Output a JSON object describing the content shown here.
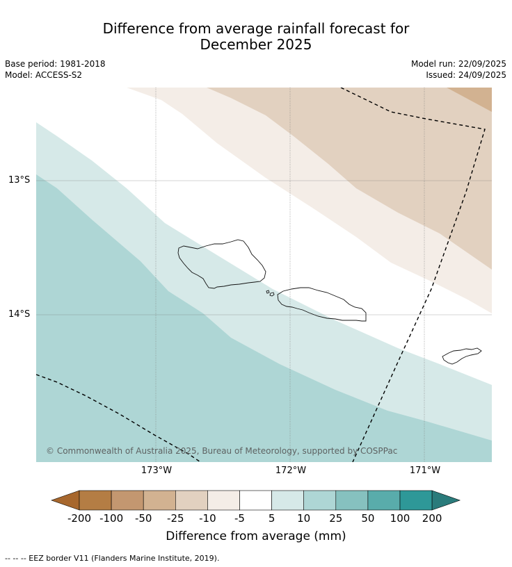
{
  "header": {
    "title_line1": "Difference from average rainfall forecast for",
    "title_line2": "December 2025",
    "base_period": "Base period: 1981-2018",
    "model": "Model: ACCESS-S2",
    "model_run": "Model run: 22/09/2025",
    "issued": "Issued: 24/09/2025"
  },
  "map": {
    "lat_labels": [
      "13°S",
      "14°S"
    ],
    "lon_labels": [
      "173°W",
      "172°W",
      "171°W"
    ],
    "copyright": "© Commonwealth of Australia 2025, Bureau of Meteorology, supported by COSPPac",
    "colors": {
      "b_minus10_minus5": "#f4ede7",
      "b_minus25_minus10": "#e2d1c0",
      "b_minus50_minus25": "#d2b291",
      "b_minus5_5": "#ffffff",
      "b_5_10": "#d6e9e8",
      "b_10_25": "#aed6d5"
    }
  },
  "legend": {
    "ticks": [
      "-200",
      "-100",
      "-50",
      "-25",
      "-10",
      "-5",
      "5",
      "10",
      "25",
      "50",
      "100",
      "200"
    ],
    "colors": [
      "#a7672d",
      "#b47d44",
      "#c39770",
      "#d2b291",
      "#e2d1c0",
      "#f4ede7",
      "#ffffff",
      "#d6e9e8",
      "#aed6d5",
      "#86c1bf",
      "#59acab",
      "#2e9898",
      "#2a7b7b"
    ],
    "label": "Difference from average (mm)"
  },
  "footnote": "--  --  -- EEZ border V11 (Flanders Marine Institute, 2019)."
}
